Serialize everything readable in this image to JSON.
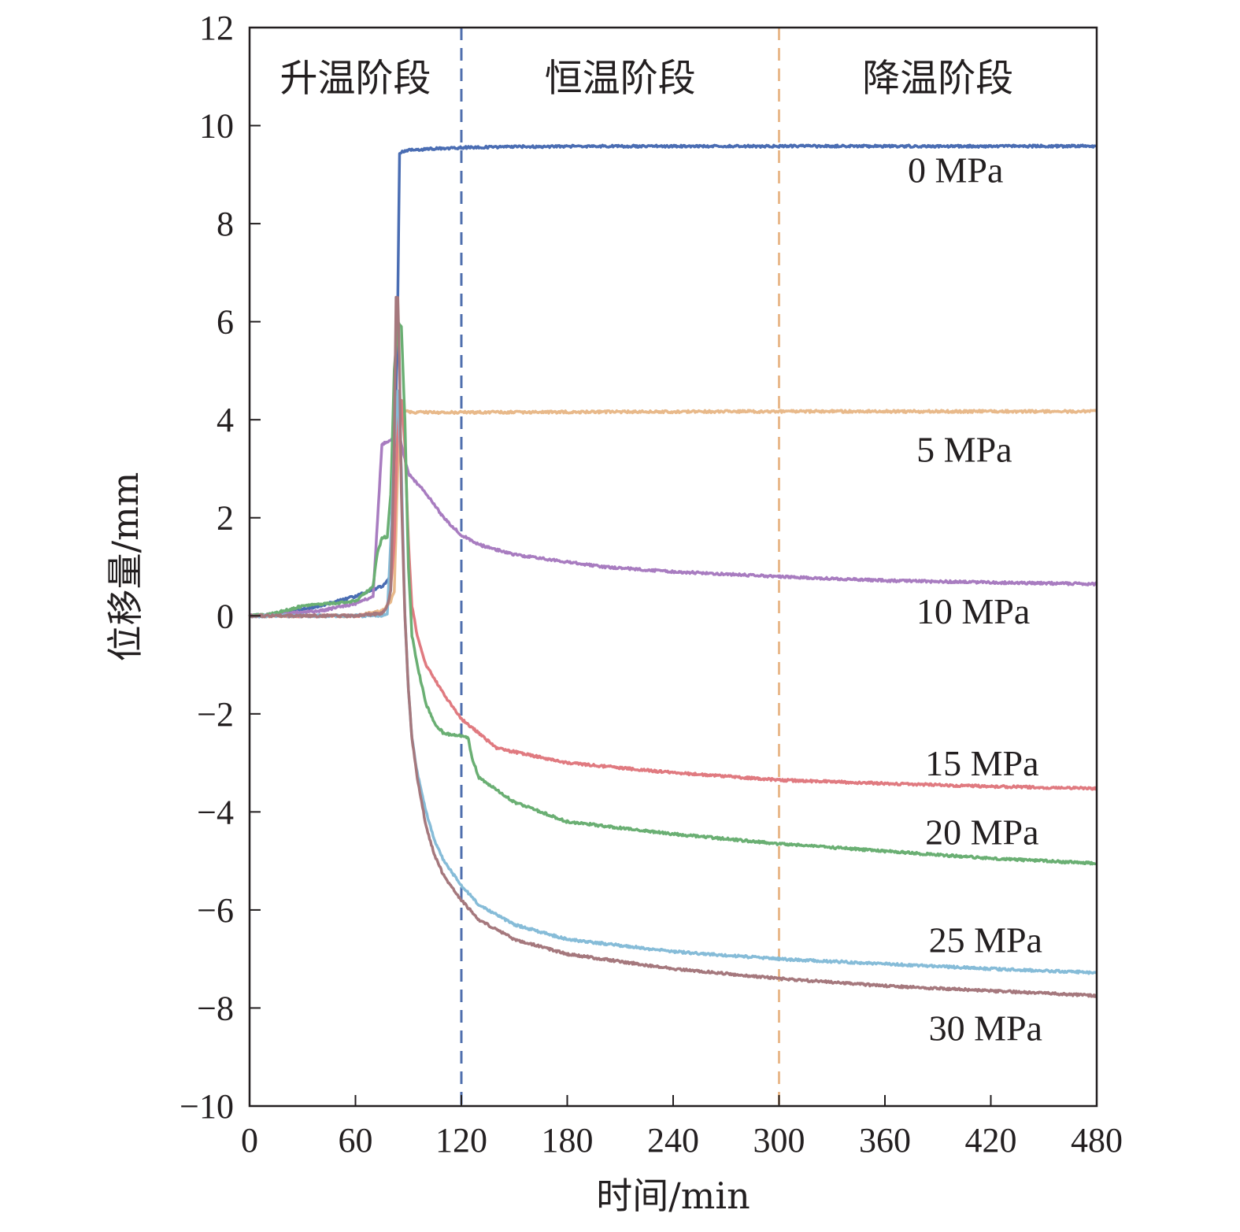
{
  "chart_data": {
    "type": "line",
    "title": "",
    "xlabel": "时间/min",
    "ylabel": "位移量/mm",
    "xlim": [
      0,
      480
    ],
    "ylim": [
      -10,
      12
    ],
    "xticks": [
      0,
      60,
      120,
      180,
      240,
      300,
      360,
      420,
      480
    ],
    "yticks": [
      -10,
      -8,
      -6,
      -4,
      -2,
      0,
      2,
      4,
      6,
      8,
      10,
      12
    ],
    "grid": false,
    "stage_dividers": [
      {
        "x": 120,
        "color": "#4f6fae"
      },
      {
        "x": 300,
        "color": "#e9b98c"
      }
    ],
    "stage_labels": [
      {
        "text": "升温阶段",
        "x": 60,
        "y": 11
      },
      {
        "text": "恒温阶段",
        "x": 210,
        "y": 11
      },
      {
        "text": "降温阶段",
        "x": 390,
        "y": 11
      }
    ],
    "series": [
      {
        "name": "0 MPa",
        "color": "#4a6db3",
        "label_pos": [
          400,
          9.1
        ],
        "x": [
          0,
          10,
          40,
          60,
          75,
          80,
          82,
          84,
          85,
          90,
          100,
          120,
          150,
          200,
          300,
          400,
          480
        ],
        "y": [
          0,
          0,
          0.2,
          0.4,
          0.6,
          0.8,
          2.5,
          6.5,
          9.45,
          9.5,
          9.52,
          9.55,
          9.57,
          9.58,
          9.58,
          9.58,
          9.58
        ]
      },
      {
        "name": "5 MPa",
        "color": "#e8b98a",
        "label_pos": [
          405,
          3.4
        ],
        "x": [
          0,
          60,
          75,
          80,
          82,
          84,
          86,
          88,
          90,
          100,
          120,
          200,
          300,
          400,
          480
        ],
        "y": [
          0,
          0,
          0.1,
          0.3,
          0.5,
          3.0,
          4.4,
          4.2,
          4.15,
          4.15,
          4.15,
          4.16,
          4.17,
          4.17,
          4.17
        ]
      },
      {
        "name": "10 MPa",
        "color": "#a87cc0",
        "label_pos": [
          410,
          0.1
        ],
        "x": [
          0,
          10,
          40,
          60,
          70,
          75,
          80,
          82,
          84,
          86,
          90,
          95,
          100,
          110,
          120,
          130,
          150,
          180,
          200,
          240,
          300,
          360,
          420,
          480
        ],
        "y": [
          0,
          0.02,
          0.1,
          0.25,
          0.4,
          3.5,
          3.6,
          3.6,
          3.9,
          3.5,
          2.9,
          2.7,
          2.5,
          2.0,
          1.65,
          1.45,
          1.25,
          1.1,
          1.0,
          0.9,
          0.8,
          0.72,
          0.68,
          0.65
        ]
      },
      {
        "name": "15 MPa",
        "color": "#e07a80",
        "label_pos": [
          415,
          -3.0
        ],
        "x": [
          0,
          60,
          75,
          78,
          80,
          82,
          84,
          86,
          88,
          90,
          92,
          95,
          100,
          110,
          120,
          140,
          180,
          240,
          300,
          360,
          420,
          480
        ],
        "y": [
          0,
          0,
          0.05,
          0.2,
          0.6,
          1.5,
          4.0,
          4.4,
          3.5,
          1.5,
          0.2,
          -0.4,
          -1.0,
          -1.6,
          -2.1,
          -2.7,
          -3.0,
          -3.2,
          -3.35,
          -3.42,
          -3.48,
          -3.52
        ]
      },
      {
        "name": "20 MPa",
        "color": "#6aaf73",
        "label_pos": [
          415,
          -4.4
        ],
        "x": [
          0,
          10,
          30,
          60,
          70,
          72,
          75,
          78,
          80,
          82,
          84,
          86,
          88,
          90,
          92,
          95,
          100,
          105,
          110,
          120,
          124,
          126,
          130,
          150,
          180,
          240,
          300,
          360,
          420,
          480
        ],
        "y": [
          0,
          0.02,
          0.2,
          0.3,
          0.6,
          1.2,
          1.6,
          1.6,
          2.5,
          5.0,
          6.0,
          5.9,
          4.0,
          1.0,
          -0.4,
          -1.0,
          -1.8,
          -2.2,
          -2.4,
          -2.45,
          -2.5,
          -2.9,
          -3.3,
          -3.8,
          -4.2,
          -4.45,
          -4.65,
          -4.8,
          -4.95,
          -5.05
        ]
      },
      {
        "name": "25 MPa",
        "color": "#86bcd8",
        "label_pos": [
          417,
          -6.6
        ],
        "x": [
          0,
          60,
          75,
          78,
          80,
          82,
          84,
          86,
          88,
          90,
          92,
          95,
          100,
          105,
          110,
          120,
          130,
          150,
          180,
          240,
          300,
          360,
          420,
          480
        ],
        "y": [
          0,
          0,
          0,
          0.05,
          1.5,
          3.5,
          4.6,
          3.0,
          0.0,
          -1.5,
          -2.5,
          -3.2,
          -4.0,
          -4.6,
          -5.0,
          -5.5,
          -5.9,
          -6.3,
          -6.6,
          -6.85,
          -7.0,
          -7.1,
          -7.2,
          -7.28
        ]
      },
      {
        "name": "30 MPa",
        "color": "#a5787d",
        "label_pos": [
          417,
          -8.4
        ],
        "x": [
          0,
          60,
          75,
          78,
          80,
          82,
          83,
          84,
          85,
          86,
          88,
          90,
          92,
          95,
          100,
          105,
          110,
          120,
          130,
          150,
          180,
          240,
          300,
          360,
          420,
          480
        ],
        "y": [
          0,
          0,
          0.05,
          0.2,
          0.5,
          3.5,
          6.5,
          6.5,
          5.0,
          2.5,
          0.0,
          -1.5,
          -2.5,
          -3.3,
          -4.3,
          -4.9,
          -5.3,
          -5.8,
          -6.2,
          -6.6,
          -6.9,
          -7.2,
          -7.4,
          -7.55,
          -7.65,
          -7.75
        ]
      }
    ]
  }
}
